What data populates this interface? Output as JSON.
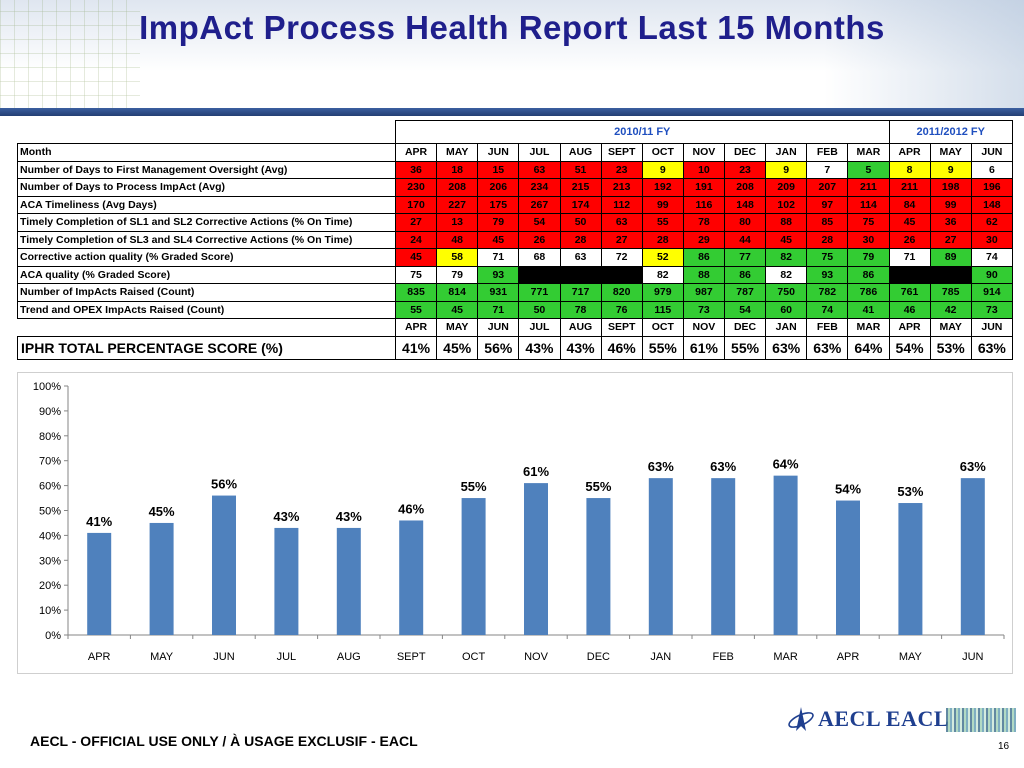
{
  "title": "ImpAct Process Health Report Last 15 Months",
  "fy_headers": [
    {
      "label": "2010/11 FY"
    },
    {
      "label": "2011/2012 FY"
    }
  ],
  "month_header_label": "Month",
  "months": [
    "APR",
    "MAY",
    "JUN",
    "JUL",
    "AUG",
    "SEPT",
    "OCT",
    "NOV",
    "DEC",
    "JAN",
    "FEB",
    "MAR",
    "APR",
    "MAY",
    "JUN"
  ],
  "colors": {
    "red": "#ff0000",
    "yellow": "#ffff00",
    "green": "#33cc33",
    "black": "#000000",
    "white": "#ffffff",
    "title_blue": "#1f1f8c",
    "bar_blue": "#4f81bd",
    "fy_blue": "#1f4fbf"
  },
  "rows": [
    {
      "label": "Number of Days to First Management Oversight (Avg)",
      "values": [
        "36",
        "18",
        "15",
        "63",
        "51",
        "23",
        "9",
        "10",
        "23",
        "9",
        "7",
        "5",
        "8",
        "9",
        "6"
      ],
      "colors": [
        "red",
        "red",
        "red",
        "red",
        "red",
        "red",
        "yellow",
        "red",
        "red",
        "yellow",
        "white",
        "green",
        "yellow",
        "yellow",
        "white"
      ]
    },
    {
      "label": "Number of Days to Process ImpAct (Avg)",
      "values": [
        "230",
        "208",
        "206",
        "234",
        "215",
        "213",
        "192",
        "191",
        "208",
        "209",
        "207",
        "211",
        "211",
        "198",
        "196"
      ],
      "colors": [
        "red",
        "red",
        "red",
        "red",
        "red",
        "red",
        "red",
        "red",
        "red",
        "red",
        "red",
        "red",
        "red",
        "red",
        "red"
      ]
    },
    {
      "label": "ACA Timeliness (Avg Days)",
      "values": [
        "170",
        "227",
        "175",
        "267",
        "174",
        "112",
        "99",
        "116",
        "148",
        "102",
        "97",
        "114",
        "84",
        "99",
        "148"
      ],
      "colors": [
        "red",
        "red",
        "red",
        "red",
        "red",
        "red",
        "red",
        "red",
        "red",
        "red",
        "red",
        "red",
        "red",
        "red",
        "red"
      ]
    },
    {
      "label": "Timely Completion of SL1 and SL2 Corrective Actions (% On Time)",
      "values": [
        "27",
        "13",
        "79",
        "54",
        "50",
        "63",
        "55",
        "78",
        "80",
        "88",
        "85",
        "75",
        "45",
        "36",
        "62"
      ],
      "colors": [
        "red",
        "red",
        "red",
        "red",
        "red",
        "red",
        "red",
        "red",
        "red",
        "red",
        "red",
        "red",
        "red",
        "red",
        "red"
      ]
    },
    {
      "label": "Timely Completion of SL3 and SL4 Corrective Actions (% On Time)",
      "values": [
        "24",
        "48",
        "45",
        "26",
        "28",
        "27",
        "28",
        "29",
        "44",
        "45",
        "28",
        "30",
        "26",
        "27",
        "30"
      ],
      "colors": [
        "red",
        "red",
        "red",
        "red",
        "red",
        "red",
        "red",
        "red",
        "red",
        "red",
        "red",
        "red",
        "red",
        "red",
        "red"
      ]
    },
    {
      "label": "Corrective action quality (% Graded Score)",
      "values": [
        "45",
        "58",
        "71",
        "68",
        "63",
        "72",
        "52",
        "86",
        "77",
        "82",
        "75",
        "79",
        "71",
        "89",
        "74"
      ],
      "colors": [
        "red",
        "yellow",
        "white",
        "white",
        "white",
        "white",
        "yellow",
        "green",
        "green",
        "green",
        "green",
        "green",
        "white",
        "green",
        "white"
      ]
    },
    {
      "label": "ACA quality (% Graded Score)",
      "values": [
        "75",
        "79",
        "93",
        "",
        "",
        "",
        "82",
        "88",
        "86",
        "82",
        "93",
        "86",
        "",
        "",
        "90"
      ],
      "colors": [
        "white",
        "white",
        "green",
        "black",
        "black",
        "black",
        "white",
        "green",
        "green",
        "white",
        "green",
        "green",
        "black",
        "black",
        "green"
      ]
    },
    {
      "label": "Number of ImpActs Raised (Count)",
      "values": [
        "835",
        "814",
        "931",
        "771",
        "717",
        "820",
        "979",
        "987",
        "787",
        "750",
        "782",
        "786",
        "761",
        "785",
        "914"
      ],
      "colors": [
        "green",
        "green",
        "green",
        "green",
        "green",
        "green",
        "green",
        "green",
        "green",
        "green",
        "green",
        "green",
        "green",
        "green",
        "green"
      ]
    },
    {
      "label": "Trend and OPEX ImpActs Raised (Count)",
      "values": [
        "55",
        "45",
        "71",
        "50",
        "78",
        "76",
        "115",
        "73",
        "54",
        "60",
        "74",
        "41",
        "46",
        "42",
        "73"
      ],
      "colors": [
        "green",
        "green",
        "green",
        "green",
        "green",
        "green",
        "green",
        "green",
        "green",
        "green",
        "green",
        "green",
        "green",
        "green",
        "green"
      ]
    }
  ],
  "total_label": "IPHR TOTAL PERCENTAGE SCORE (%)",
  "totals": [
    "41%",
    "45%",
    "56%",
    "43%",
    "43%",
    "46%",
    "55%",
    "61%",
    "55%",
    "63%",
    "63%",
    "64%",
    "54%",
    "53%",
    "63%"
  ],
  "chart_data": {
    "type": "bar",
    "categories": [
      "APR",
      "MAY",
      "JUN",
      "JUL",
      "AUG",
      "SEPT",
      "OCT",
      "NOV",
      "DEC",
      "JAN",
      "FEB",
      "MAR",
      "APR",
      "MAY",
      "JUN"
    ],
    "values": [
      41,
      45,
      56,
      43,
      43,
      46,
      55,
      61,
      55,
      63,
      63,
      64,
      54,
      53,
      63
    ],
    "data_labels": [
      "41%",
      "45%",
      "56%",
      "43%",
      "43%",
      "46%",
      "55%",
      "61%",
      "55%",
      "63%",
      "63%",
      "64%",
      "54%",
      "53%",
      "63%"
    ],
    "y_ticks": [
      "0%",
      "10%",
      "20%",
      "30%",
      "40%",
      "50%",
      "60%",
      "70%",
      "80%",
      "90%",
      "100%"
    ],
    "ylim": [
      0,
      100
    ],
    "title": "",
    "xlabel": "",
    "ylabel": "",
    "grid": false,
    "bar_color": "#4f81bd"
  },
  "footer": "AECL - OFFICIAL USE ONLY / À USAGE EXCLUSIF - EACL",
  "page_number": "16",
  "logo_text": "AECL EACL"
}
